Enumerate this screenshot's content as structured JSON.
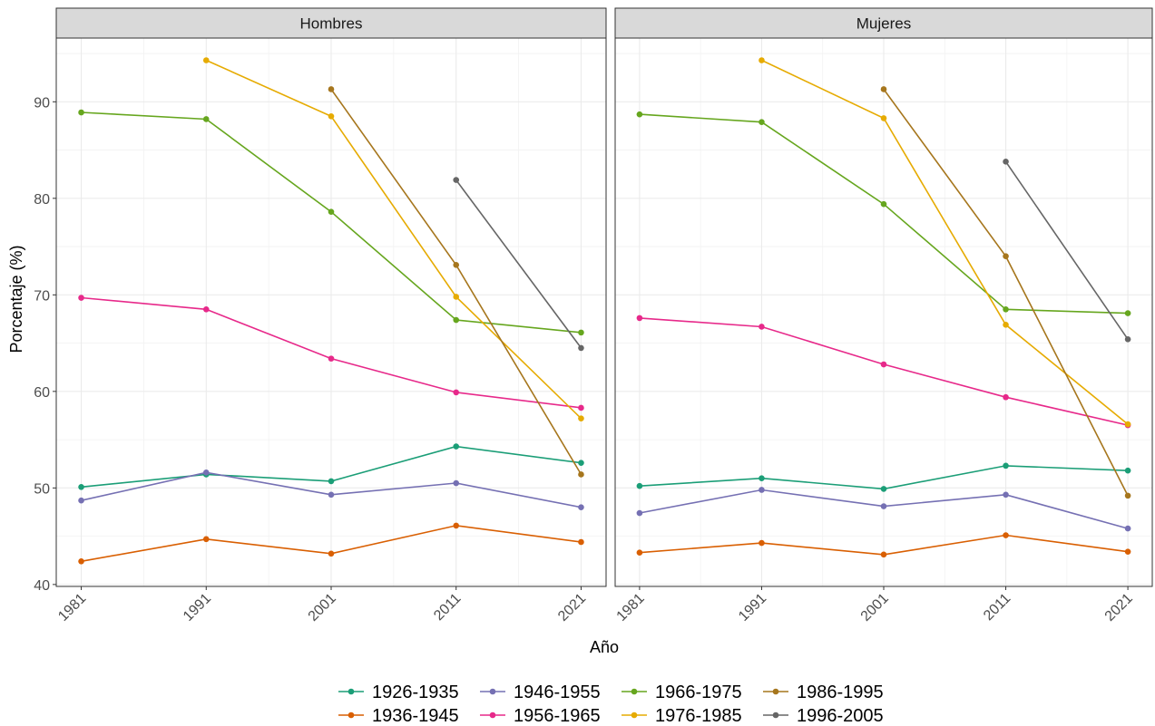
{
  "chart_data": {
    "type": "line",
    "xlabel": "Año",
    "ylabel": "Porcentaje (%)",
    "x_ticks": [
      1981,
      1991,
      2001,
      2011,
      2021
    ],
    "y_ticks": [
      40,
      50,
      60,
      70,
      80,
      90
    ],
    "xlim": [
      1979,
      2023
    ],
    "ylim": [
      39.8,
      96.6
    ],
    "grid": true,
    "legend_position": "bottom",
    "panels": [
      {
        "name": "Hombres",
        "series": [
          {
            "name": "1926-1935",
            "color": "#1b9e77",
            "points": [
              [
                1981,
                50.1
              ],
              [
                1991,
                51.4
              ],
              [
                2001,
                50.7
              ],
              [
                2011,
                54.3
              ],
              [
                2021,
                52.6
              ]
            ]
          },
          {
            "name": "1936-1945",
            "color": "#d95f02",
            "points": [
              [
                1981,
                42.4
              ],
              [
                1991,
                44.7
              ],
              [
                2001,
                43.2
              ],
              [
                2011,
                46.1
              ],
              [
                2021,
                44.4
              ]
            ]
          },
          {
            "name": "1946-1955",
            "color": "#7570b3",
            "points": [
              [
                1981,
                48.7
              ],
              [
                1991,
                51.6
              ],
              [
                2001,
                49.3
              ],
              [
                2011,
                50.5
              ],
              [
                2021,
                48.0
              ]
            ]
          },
          {
            "name": "1956-1965",
            "color": "#e7298a",
            "points": [
              [
                1981,
                69.7
              ],
              [
                1991,
                68.5
              ],
              [
                2001,
                63.4
              ],
              [
                2011,
                59.9
              ],
              [
                2021,
                58.3
              ]
            ]
          },
          {
            "name": "1966-1975",
            "color": "#66a61e",
            "points": [
              [
                1981,
                88.9
              ],
              [
                1991,
                88.2
              ],
              [
                2001,
                78.6
              ],
              [
                2011,
                67.4
              ],
              [
                2021,
                66.1
              ]
            ]
          },
          {
            "name": "1976-1985",
            "color": "#e6ab02",
            "points": [
              [
                1991,
                94.3
              ],
              [
                2001,
                88.5
              ],
              [
                2011,
                69.8
              ],
              [
                2021,
                57.2
              ]
            ]
          },
          {
            "name": "1986-1995",
            "color": "#a6761d",
            "points": [
              [
                2001,
                91.3
              ],
              [
                2011,
                73.1
              ],
              [
                2021,
                51.4
              ]
            ]
          },
          {
            "name": "1996-2005",
            "color": "#666666",
            "points": [
              [
                2011,
                81.9
              ],
              [
                2021,
                64.5
              ]
            ]
          }
        ]
      },
      {
        "name": "Mujeres",
        "series": [
          {
            "name": "1926-1935",
            "color": "#1b9e77",
            "points": [
              [
                1981,
                50.2
              ],
              [
                1991,
                51.0
              ],
              [
                2001,
                49.9
              ],
              [
                2011,
                52.3
              ],
              [
                2021,
                51.8
              ]
            ]
          },
          {
            "name": "1936-1945",
            "color": "#d95f02",
            "points": [
              [
                1981,
                43.3
              ],
              [
                1991,
                44.3
              ],
              [
                2001,
                43.1
              ],
              [
                2011,
                45.1
              ],
              [
                2021,
                43.4
              ]
            ]
          },
          {
            "name": "1946-1955",
            "color": "#7570b3",
            "points": [
              [
                1981,
                47.4
              ],
              [
                1991,
                49.8
              ],
              [
                2001,
                48.1
              ],
              [
                2011,
                49.3
              ],
              [
                2021,
                45.8
              ]
            ]
          },
          {
            "name": "1956-1965",
            "color": "#e7298a",
            "points": [
              [
                1981,
                67.6
              ],
              [
                1991,
                66.7
              ],
              [
                2001,
                62.8
              ],
              [
                2011,
                59.4
              ],
              [
                2021,
                56.5
              ]
            ]
          },
          {
            "name": "1966-1975",
            "color": "#66a61e",
            "points": [
              [
                1981,
                88.7
              ],
              [
                1991,
                87.9
              ],
              [
                2001,
                79.4
              ],
              [
                2011,
                68.5
              ],
              [
                2021,
                68.1
              ]
            ]
          },
          {
            "name": "1976-1985",
            "color": "#e6ab02",
            "points": [
              [
                1991,
                94.3
              ],
              [
                2001,
                88.3
              ],
              [
                2011,
                66.9
              ],
              [
                2021,
                56.6
              ]
            ]
          },
          {
            "name": "1986-1995",
            "color": "#a6761d",
            "points": [
              [
                2001,
                91.3
              ],
              [
                2011,
                74.0
              ],
              [
                2021,
                49.2
              ]
            ]
          },
          {
            "name": "1996-2005",
            "color": "#666666",
            "points": [
              [
                2011,
                83.8
              ],
              [
                2021,
                65.4
              ]
            ]
          }
        ]
      }
    ],
    "legend": [
      {
        "name": "1926-1935",
        "color": "#1b9e77"
      },
      {
        "name": "1936-1945",
        "color": "#d95f02"
      },
      {
        "name": "1946-1955",
        "color": "#7570b3"
      },
      {
        "name": "1956-1965",
        "color": "#e7298a"
      },
      {
        "name": "1966-1975",
        "color": "#66a61e"
      },
      {
        "name": "1976-1985",
        "color": "#e6ab02"
      },
      {
        "name": "1986-1995",
        "color": "#a6761d"
      },
      {
        "name": "1996-2005",
        "color": "#666666"
      }
    ]
  }
}
